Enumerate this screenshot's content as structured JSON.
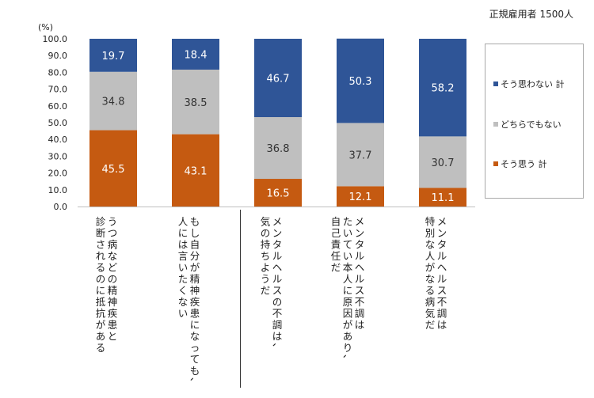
{
  "note": "正規雇用者 1500人",
  "chart_data": {
    "type": "bar",
    "stacked": true,
    "unit_label": "(%)",
    "ylim": [
      0,
      100
    ],
    "yticks": [
      "0.0",
      "10.0",
      "20.0",
      "30.0",
      "40.0",
      "50.0",
      "60.0",
      "70.0",
      "80.0",
      "90.0",
      "100.0"
    ],
    "categories": [
      "うつ病などの精神疾患と\n診断されるのに抵抗がある",
      "もし自分が精神疾患になっても、\n人には言いたくない",
      "メンタルヘルスの不調は、\n気の持ちようだ",
      "メンタルヘルス不調は\nたいてい本人に原因があり、\n自己責任だ",
      "メンタルヘルス不調は\n特別な人がなる病気だ"
    ],
    "series": [
      {
        "name": "そう思う 計",
        "color": "#C55A11",
        "values": [
          45.5,
          43.1,
          16.5,
          12.1,
          11.1
        ]
      },
      {
        "name": "どちらでもない",
        "color": "#BFBFBF",
        "values": [
          34.8,
          38.5,
          36.8,
          37.7,
          30.7
        ]
      },
      {
        "name": "そう思わない 計",
        "color": "#2F5597",
        "values": [
          19.7,
          18.4,
          46.7,
          50.3,
          58.2
        ]
      }
    ],
    "legend": "right",
    "legend_order": [
      "そう思わない 計",
      "どちらでもない",
      "そう思う 計"
    ],
    "grid": false
  }
}
